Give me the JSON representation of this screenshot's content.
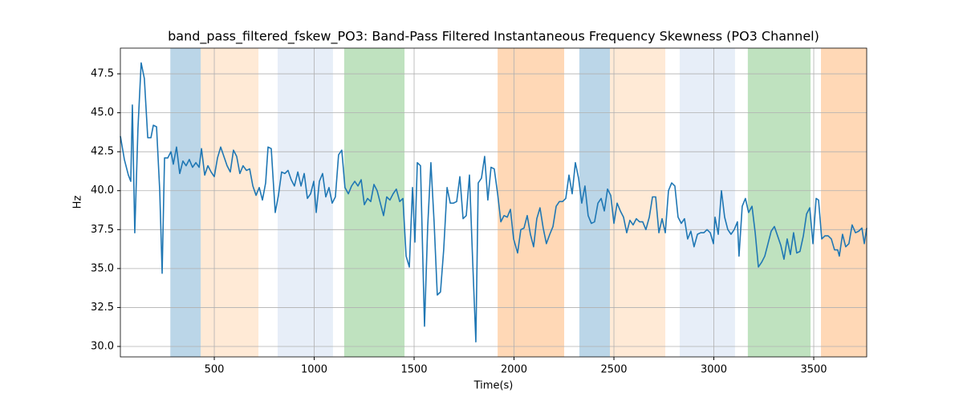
{
  "chart_data": {
    "type": "line",
    "title": "band_pass_filtered_fskew_PO3: Band-Pass Filtered Instantaneous Frequency Skewness (PO3 Channel)",
    "x_label": "Time(s)",
    "y_label": "Hz",
    "x": [
      30,
      50,
      70,
      82,
      90,
      102,
      118,
      134,
      150,
      167,
      183,
      195,
      211,
      227,
      239,
      251,
      267,
      283,
      295,
      311,
      327,
      343,
      359,
      375,
      391,
      408,
      424,
      436,
      452,
      468,
      484,
      500,
      516,
      532,
      548,
      564,
      580,
      596,
      612,
      628,
      644,
      661,
      677,
      693,
      709,
      725,
      741,
      757,
      769,
      785,
      805,
      821,
      837,
      853,
      869,
      885,
      901,
      918,
      934,
      950,
      966,
      982,
      998,
      1010,
      1026,
      1042,
      1058,
      1074,
      1090,
      1106,
      1122,
      1138,
      1154,
      1171,
      1187,
      1203,
      1219,
      1235,
      1251,
      1267,
      1283,
      1299,
      1315,
      1331,
      1347,
      1363,
      1379,
      1395,
      1411,
      1428,
      1444,
      1460,
      1476,
      1492,
      1504,
      1516,
      1532,
      1552,
      1568,
      1584,
      1600,
      1616,
      1632,
      1648,
      1665,
      1681,
      1697,
      1713,
      1729,
      1745,
      1761,
      1777,
      1793,
      1809,
      1821,
      1837,
      1853,
      1869,
      1885,
      1901,
      1918,
      1934,
      1950,
      1966,
      1982,
      1998,
      2018,
      2034,
      2050,
      2066,
      2082,
      2098,
      2114,
      2130,
      2146,
      2162,
      2179,
      2195,
      2211,
      2227,
      2243,
      2259,
      2275,
      2291,
      2307,
      2323,
      2339,
      2355,
      2371,
      2387,
      2403,
      2420,
      2436,
      2452,
      2468,
      2484,
      2500,
      2516,
      2532,
      2548,
      2564,
      2580,
      2596,
      2612,
      2628,
      2644,
      2660,
      2677,
      2693,
      2709,
      2725,
      2741,
      2757,
      2773,
      2789,
      2805,
      2821,
      2837,
      2853,
      2869,
      2885,
      2901,
      2918,
      2934,
      2950,
      2966,
      2982,
      2998,
      3006,
      3022,
      3038,
      3054,
      3070,
      3086,
      3102,
      3118,
      3126,
      3142,
      3158,
      3174,
      3191,
      3207,
      3223,
      3239,
      3255,
      3271,
      3287,
      3303,
      3319,
      3335,
      3351,
      3367,
      3383,
      3399,
      3415,
      3431,
      3448,
      3464,
      3480,
      3496,
      3512,
      3524,
      3540,
      3556,
      3572,
      3588,
      3604,
      3620,
      3628,
      3644,
      3660,
      3676,
      3692,
      3709,
      3725,
      3741,
      3753,
      3765
    ],
    "values": [
      43.5,
      42,
      41,
      40.6,
      45.5,
      37.3,
      44,
      48.2,
      47.2,
      43.4,
      43.4,
      44.2,
      44.1,
      40,
      34.7,
      42.1,
      42.1,
      42.5,
      41.7,
      42.8,
      41.1,
      41.9,
      41.6,
      42,
      41.5,
      41.8,
      41.5,
      42.7,
      41,
      41.6,
      41.2,
      40.9,
      42.1,
      42.8,
      42.2,
      41.6,
      41.2,
      42.6,
      42.2,
      41.1,
      41.6,
      41.3,
      41.4,
      40.3,
      39.7,
      40.2,
      39.4,
      40.5,
      42.8,
      42.7,
      38.6,
      39.7,
      41.2,
      41.1,
      41.3,
      40.7,
      40.3,
      41.2,
      40.3,
      41.1,
      39.5,
      39.8,
      40.6,
      38.6,
      40.6,
      41.1,
      39.6,
      40.2,
      39.2,
      39.6,
      42.3,
      42.6,
      40.2,
      39.8,
      40.3,
      40.6,
      40.3,
      40.7,
      39.1,
      39.5,
      39.3,
      40.4,
      40,
      39.2,
      38.4,
      39.6,
      39.4,
      39.8,
      40.1,
      39.3,
      39.5,
      35.8,
      35.1,
      40.2,
      36.7,
      41.8,
      41.6,
      31.3,
      37.7,
      41.8,
      38,
      33.3,
      33.5,
      36.2,
      40.2,
      39.2,
      39.2,
      39.3,
      40.9,
      38.2,
      38.4,
      41,
      35.5,
      30.3,
      40.5,
      40.8,
      42.2,
      39.4,
      41.5,
      41.4,
      39.8,
      38,
      38.4,
      38.3,
      38.8,
      36.9,
      36,
      37.5,
      37.6,
      38.4,
      37.2,
      36.4,
      38.2,
      38.9,
      37.6,
      36.6,
      37.2,
      37.7,
      39,
      39.3,
      39.3,
      39.5,
      41,
      39.8,
      41.8,
      40.8,
      39.2,
      40.3,
      38.4,
      37.9,
      38,
      39.2,
      39.5,
      38.7,
      40.1,
      39.7,
      37.9,
      39.2,
      38.7,
      38.3,
      37.3,
      38.1,
      37.8,
      38.2,
      38,
      38,
      37.5,
      38.3,
      39.6,
      39.6,
      37.3,
      38.2,
      37.3,
      40,
      40.5,
      40.3,
      38.3,
      37.9,
      38.2,
      36.9,
      37.4,
      36.4,
      37.2,
      37.3,
      37.3,
      37.5,
      37.3,
      36.6,
      38.3,
      37.2,
      40,
      38.3,
      37.5,
      37.2,
      37.5,
      38,
      35.8,
      39,
      39.5,
      38.6,
      39,
      37.3,
      35.1,
      35.4,
      35.8,
      36.6,
      37.4,
      37.7,
      37.1,
      36.5,
      35.6,
      36.9,
      35.9,
      37.3,
      36,
      36.1,
      37.1,
      38.5,
      38.9,
      36.6,
      39.5,
      39.4,
      36.9,
      37.1,
      37.1,
      36.9,
      36.2,
      36.2,
      35.8,
      37.2,
      36.4,
      36.6,
      37.8,
      37.3,
      37.4,
      37.6,
      36.6,
      37.6
    ],
    "color": "#1f77b4",
    "shaded_regions": [
      {
        "start": 280,
        "end": 432,
        "color": "#1f77b4",
        "alpha": 0.3
      },
      {
        "start": 432,
        "end": 721,
        "color": "#ffbb78",
        "alpha": 0.3
      },
      {
        "start": 817,
        "end": 1094,
        "color": "#aec7e8",
        "alpha": 0.3
      },
      {
        "start": 1150,
        "end": 1452,
        "color": "#2ca02c",
        "alpha": 0.3
      },
      {
        "start": 1918,
        "end": 2251,
        "color": "#ff7f0e",
        "alpha": 0.3
      },
      {
        "start": 2327,
        "end": 2480,
        "color": "#1f77b4",
        "alpha": 0.3
      },
      {
        "start": 2480,
        "end": 2757,
        "color": "#ffbb78",
        "alpha": 0.3
      },
      {
        "start": 2829,
        "end": 3106,
        "color": "#aec7e8",
        "alpha": 0.3
      },
      {
        "start": 3170,
        "end": 3484,
        "color": "#2ca02c",
        "alpha": 0.3
      },
      {
        "start": 3536,
        "end": 3765,
        "color": "#ff7f0e",
        "alpha": 0.3
      }
    ],
    "xlim": [
      30,
      3765
    ],
    "xticks": [
      500,
      1000,
      1500,
      2000,
      2500,
      3000,
      3500
    ],
    "ylim": [
      29.33,
      49.15
    ],
    "yticks": [
      {
        "value": 30,
        "label": "30.0"
      },
      32.5,
      {
        "value": 35,
        "label": "35.0"
      },
      37.5,
      {
        "value": 40,
        "label": "40.0"
      },
      42.5,
      {
        "value": 45,
        "label": "45.0"
      },
      47.5
    ],
    "grid": true
  }
}
